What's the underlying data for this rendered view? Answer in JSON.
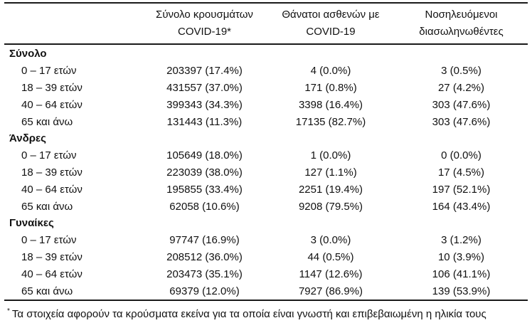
{
  "table": {
    "col_headers": [
      {
        "line1": "Σύνολο κρουσμάτων",
        "line2": "COVID-19*"
      },
      {
        "line1": "Θάνατοι ασθενών με",
        "line2": "COVID-19"
      },
      {
        "line1": "Νοσηλευόμενοι",
        "line2": "διασωληνωθέντες"
      }
    ],
    "sections": [
      {
        "label": "Σύνολο",
        "rows": [
          {
            "label": "0 – 17 ετών",
            "cases": "203397 (17.4%)",
            "deaths": "4 (0.0%)",
            "intubated": "3 (0.5%)"
          },
          {
            "label": "18 – 39 ετών",
            "cases": "431557 (37.0%)",
            "deaths": "171 (0.8%)",
            "intubated": "27 (4.2%)"
          },
          {
            "label": "40 – 64 ετών",
            "cases": "399343 (34.3%)",
            "deaths": "3398 (16.4%)",
            "intubated": "303 (47.6%)"
          },
          {
            "label": "65 και άνω",
            "cases": "131443 (11.3%)",
            "deaths": "17135 (82.7%)",
            "intubated": "303 (47.6%)"
          }
        ]
      },
      {
        "label": "Άνδρες",
        "rows": [
          {
            "label": "0 – 17 ετών",
            "cases": "105649 (18.0%)",
            "deaths": "1 (0.0%)",
            "intubated": "0 (0.0%)"
          },
          {
            "label": "18 – 39 ετών",
            "cases": "223039 (38.0%)",
            "deaths": "127 (1.1%)",
            "intubated": "17 (4.5%)"
          },
          {
            "label": "40 – 64 ετών",
            "cases": "195855 (33.4%)",
            "deaths": "2251 (19.4%)",
            "intubated": "197 (52.1%)"
          },
          {
            "label": "65 και άνω",
            "cases": "62058 (10.6%)",
            "deaths": "9208 (79.5%)",
            "intubated": "164 (43.4%)"
          }
        ]
      },
      {
        "label": "Γυναίκες",
        "rows": [
          {
            "label": "0 – 17 ετών",
            "cases": "97747 (16.9%)",
            "deaths": "3 (0.0%)",
            "intubated": "3 (1.2%)"
          },
          {
            "label": "18 – 39 ετών",
            "cases": "208512 (36.0%)",
            "deaths": "44 (0.5%)",
            "intubated": "10 (3.9%)"
          },
          {
            "label": "40 – 64 ετών",
            "cases": "203473 (35.1%)",
            "deaths": "1147 (12.6%)",
            "intubated": "106 (41.1%)"
          },
          {
            "label": "65 και άνω",
            "cases": "69379 (12.0%)",
            "deaths": "7927 (86.9%)",
            "intubated": "139 (53.9%)"
          }
        ]
      }
    ],
    "footnote": {
      "marker": "*",
      "text": "Τα στοιχεία αφορούν τα κρούσματα εκείνα για τα οποία είναι γνωστή και επιβεβαιωμένη η ηλικία τους"
    }
  }
}
